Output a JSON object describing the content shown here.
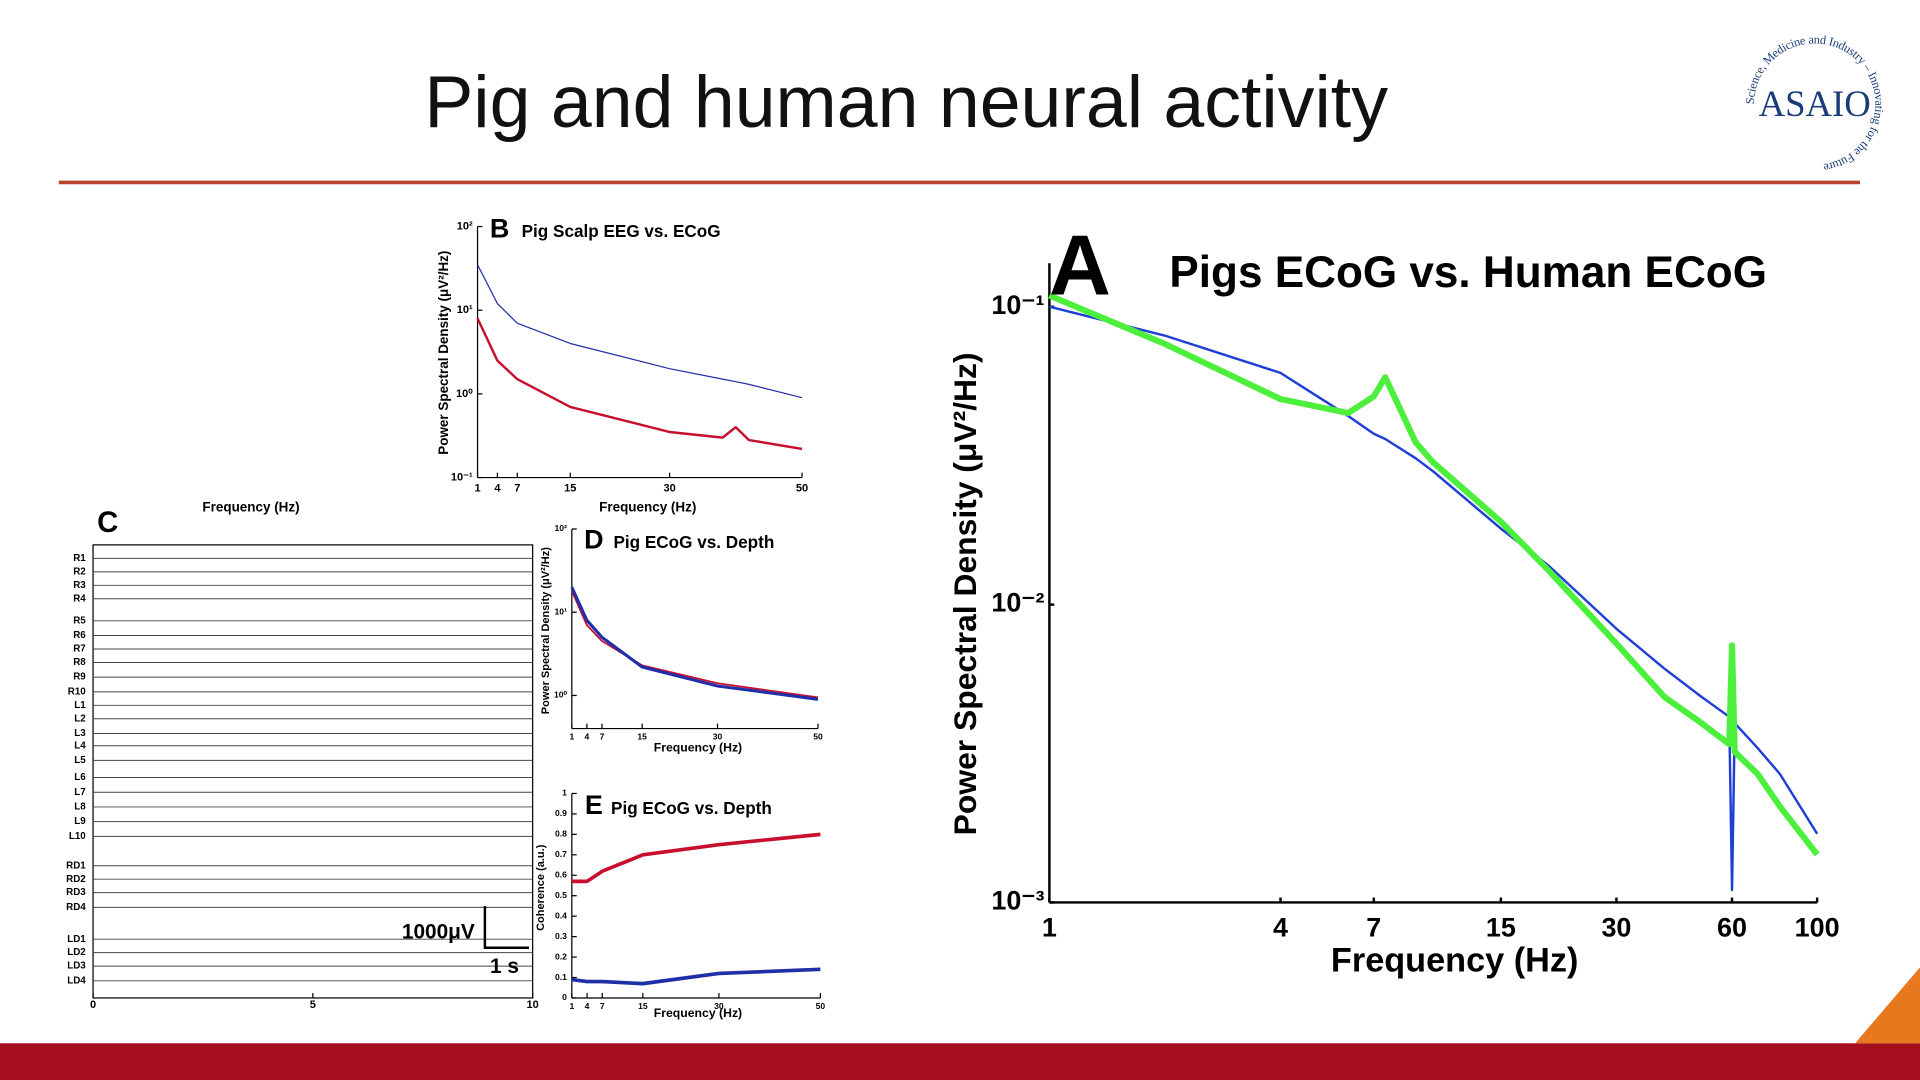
{
  "title": "Pig and human neural activity",
  "logo": {
    "name": "ASAIO",
    "tagline": "Science, Medicine and Industry – Innovating for the Future"
  },
  "chart_data": [
    {
      "type": "line",
      "label": "A",
      "title": "Pigs ECoG vs. Human ECoG",
      "xlabel": "Frequency (Hz)",
      "ylabel": "Power Spectral Density (μV²/Hz)",
      "log_x": true,
      "log_y": true,
      "xlim": [
        1,
        100
      ],
      "xticks": [
        1,
        4,
        7,
        15,
        30,
        60,
        100
      ],
      "ylim": [
        0.001,
        0.14
      ],
      "yticks": [
        {
          "value": 0.001,
          "label": "10⁻³"
        },
        {
          "value": 0.01,
          "label": "10⁻²"
        },
        {
          "value": 0.1,
          "label": "10⁻¹"
        }
      ],
      "x": [
        1,
        2,
        4,
        6,
        7,
        7.5,
        9,
        10,
        15,
        20,
        30,
        40,
        50,
        59,
        60,
        61,
        70,
        80,
        100
      ],
      "series": [
        {
          "color": "#1f3fd6",
          "values": [
            0.1,
            0.08,
            0.06,
            0.043,
            0.0375,
            0.036,
            0.031,
            0.028,
            0.018,
            0.0135,
            0.0083,
            0.0061,
            0.0049,
            0.0042,
            0.0011,
            0.004,
            0.0033,
            0.0027,
            0.0017
          ]
        },
        {
          "color": "#4cf03c",
          "values": [
            0.109,
            0.075,
            0.049,
            0.044,
            0.05,
            0.058,
            0.035,
            0.03,
            0.019,
            0.013,
            0.0074,
            0.0049,
            0.004,
            0.0034,
            0.0073,
            0.0032,
            0.0027,
            0.0021,
            0.00145
          ]
        }
      ]
    },
    {
      "type": "line",
      "label": "B",
      "title": "Pig Scalp EEG vs. ECoG",
      "xlabel": "Frequency (Hz)",
      "ylabel": "Power Spectral Density (μV²/Hz)",
      "log_x": false,
      "log_y": true,
      "xlim": [
        1,
        50
      ],
      "xticks": [
        1,
        4,
        7,
        15,
        30,
        50
      ],
      "ylim": [
        0.1,
        100
      ],
      "yticks": [
        {
          "value": 0.1,
          "label": "10⁻¹"
        },
        {
          "value": 1,
          "label": "10⁰"
        },
        {
          "value": 10,
          "label": "10¹"
        },
        {
          "value": 100,
          "label": "10²"
        }
      ],
      "x": [
        1,
        4,
        7,
        15,
        30,
        38,
        40,
        42,
        50
      ],
      "series": [
        {
          "color": "#1f2fa8",
          "values": [
            35,
            12,
            7,
            4,
            2,
            1.5,
            1.4,
            1.3,
            0.9
          ]
        },
        {
          "color": "#c8102e",
          "values": [
            8,
            2.5,
            1.5,
            0.7,
            0.35,
            0.3,
            0.4,
            0.28,
            0.22
          ]
        }
      ]
    },
    {
      "type": "line",
      "label": "D",
      "title": "Pig ECoG vs. Depth",
      "xlabel": "Frequency (Hz)",
      "ylabel": "Power Spectral Density (μV²/Hz)",
      "log_x": false,
      "log_y": true,
      "xlim": [
        1,
        50
      ],
      "xticks": [
        1,
        4,
        7,
        15,
        30,
        50
      ],
      "ylim": [
        0.4,
        100
      ],
      "yticks": [
        {
          "value": 1,
          "label": "10⁰"
        },
        {
          "value": 10,
          "label": "10¹"
        },
        {
          "value": 100,
          "label": "10²"
        }
      ],
      "x": [
        1,
        4,
        7,
        15,
        30,
        50
      ],
      "series": [
        {
          "color": "#c8102e",
          "values": [
            18,
            7,
            4.5,
            2.3,
            1.4,
            0.95
          ]
        },
        {
          "color": "#1f2fa8",
          "values": [
            20,
            8,
            5,
            2.2,
            1.3,
            0.9
          ]
        }
      ]
    },
    {
      "type": "line",
      "label": "E",
      "title": "Pig ECoG vs. Depth",
      "xlabel": "Frequency (Hz)",
      "ylabel": "Coherence (a.u.)",
      "log_x": false,
      "log_y": false,
      "xlim": [
        1,
        50
      ],
      "xticks": [
        1,
        4,
        7,
        15,
        30,
        50
      ],
      "ylim": [
        0,
        1
      ],
      "yticks": [
        0,
        0.1,
        0.2,
        0.3,
        0.4,
        0.5,
        0.6,
        0.7,
        0.8,
        0.9,
        1
      ],
      "x": [
        1,
        4,
        7,
        15,
        30,
        50
      ],
      "series": [
        {
          "color": "#c8102e",
          "values": [
            0.57,
            0.57,
            0.62,
            0.7,
            0.75,
            0.8
          ]
        },
        {
          "color": "#1f2fa8",
          "values": [
            0.09,
            0.08,
            0.08,
            0.07,
            0.12,
            0.14
          ]
        }
      ]
    },
    {
      "type": "traces",
      "label": "C",
      "xlabel": "Frequency (Hz)",
      "xlim": [
        0,
        10
      ],
      "xticks": [
        0,
        5,
        10
      ],
      "channels": [
        "R1",
        "R2",
        "R3",
        "R4",
        "R5",
        "R6",
        "R7",
        "R8",
        "R9",
        "R10",
        "L1",
        "L2",
        "L3",
        "L4",
        "L5",
        "L6",
        "L7",
        "L8",
        "L9",
        "L10",
        "RD1",
        "RD2",
        "RD3",
        "RD4",
        "LD1",
        "LD2",
        "LD3",
        "LD4"
      ],
      "scale_amplitude": "1000μV",
      "scale_time": "1 s"
    }
  ]
}
